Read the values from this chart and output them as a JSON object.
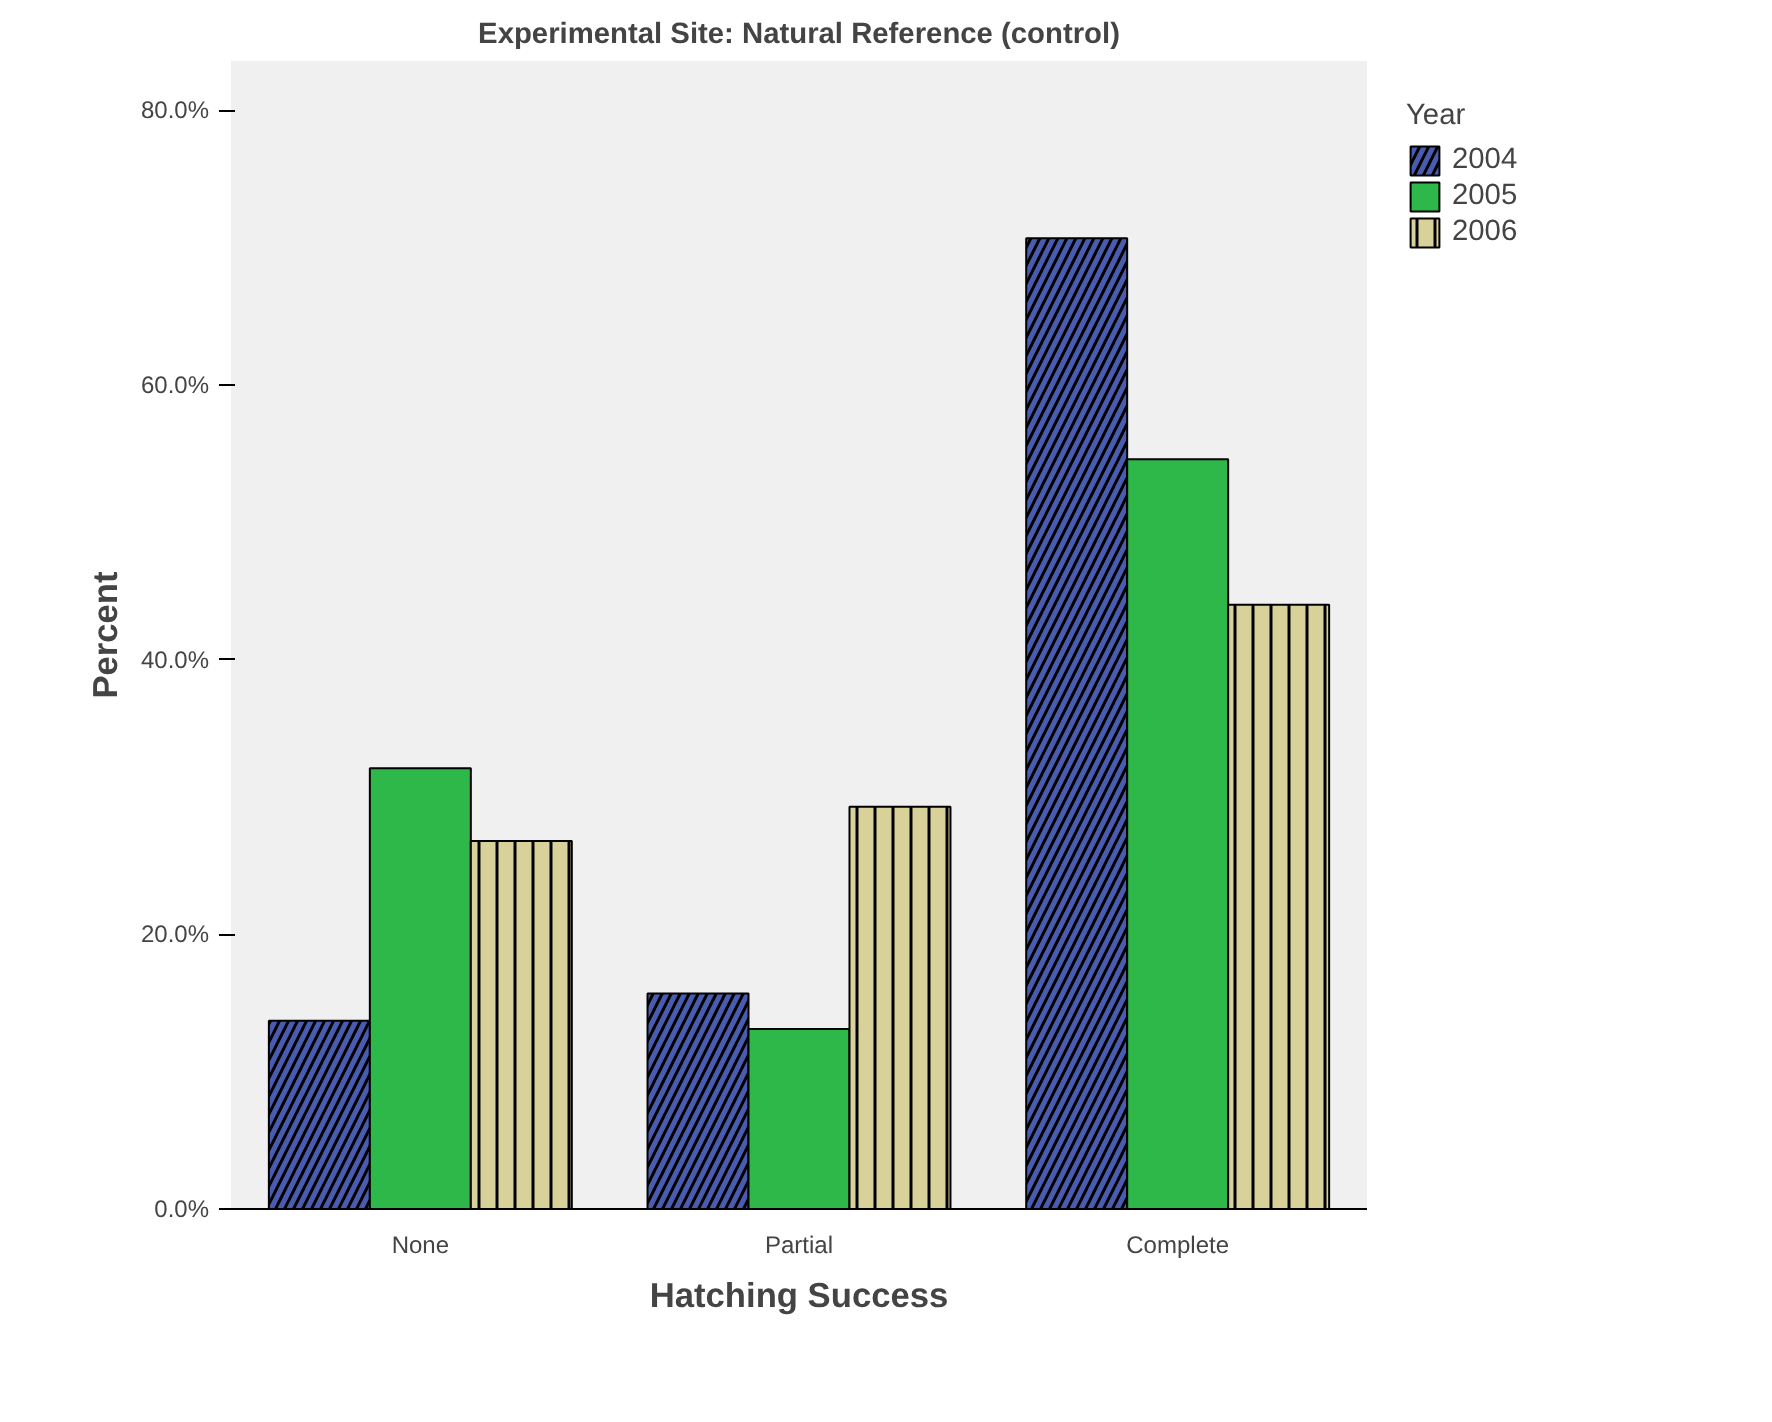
{
  "chart_data": {
    "type": "bar",
    "title": "Experimental Site: Natural Reference (control)",
    "xlabel": "Hatching Success",
    "ylabel": "Percent",
    "legend_title": "Year",
    "categories": [
      "None",
      "Partial",
      "Complete"
    ],
    "series": [
      {
        "name": "2004",
        "color": "#4a5cb0",
        "values": [
          13.7,
          15.7,
          70.7
        ]
      },
      {
        "name": "2005",
        "color": "#2eb84a",
        "values": [
          32.1,
          13.1,
          54.6
        ]
      },
      {
        "name": "2006",
        "color": "#d8d29a",
        "values": [
          26.8,
          29.3,
          44.0
        ]
      }
    ],
    "ylim": [
      0,
      83.6
    ],
    "yticks": [
      {
        "value": 0,
        "label": "0.0%"
      },
      {
        "value": 20,
        "label": "20.0%"
      },
      {
        "value": 40,
        "label": "40.0%"
      },
      {
        "value": 60,
        "label": "60.0%"
      },
      {
        "value": 80,
        "label": "80.0%"
      }
    ],
    "grid": false,
    "legend": "top right"
  }
}
